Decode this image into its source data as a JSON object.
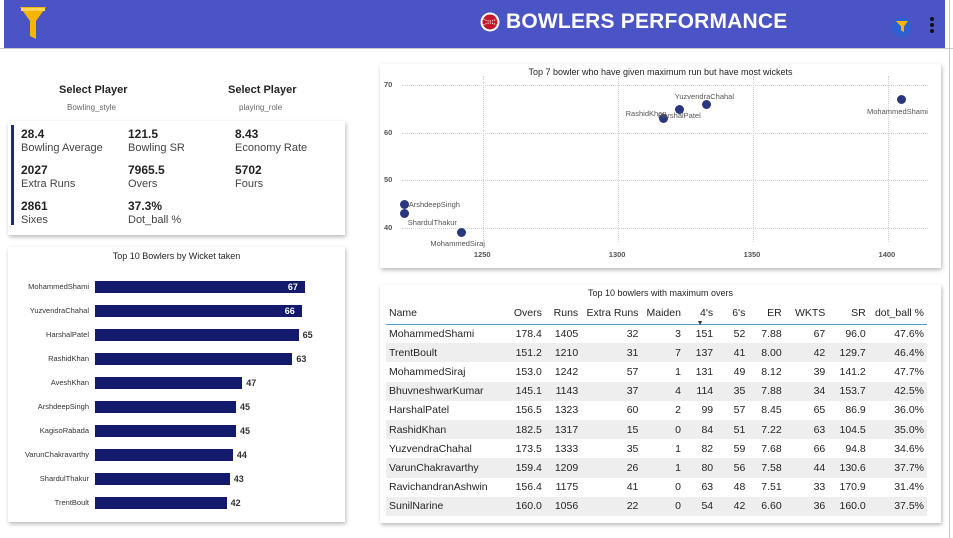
{
  "header": {
    "title": "BOWLERS PERFORMANCE",
    "brand_color": "#4a54c4",
    "logo_icon": "funnel-icon",
    "title_icon": "cricket-ball-icon",
    "buttons": [
      "filter-pane-icon",
      "more-options-icon"
    ]
  },
  "slicers": [
    {
      "title": "Select Player",
      "field": "Bowling_style"
    },
    {
      "title": "Select Player",
      "field": "playing_role"
    }
  ],
  "kpis": [
    {
      "value": "28.4",
      "label": "Bowling Average"
    },
    {
      "value": "121.5",
      "label": "Bowling SR"
    },
    {
      "value": "8.43",
      "label": "Economy Rate"
    },
    {
      "value": "2027",
      "label": "Extra Runs"
    },
    {
      "value": "7965.5",
      "label": "Overs"
    },
    {
      "value": "5702",
      "label": "Fours"
    },
    {
      "value": "2861",
      "label": "Sixes"
    },
    {
      "value": "37.3%",
      "label": "Dot_ball %"
    }
  ],
  "chart_data": [
    {
      "type": "bar",
      "orientation": "horizontal",
      "title": "Top 10 Bowlers by Wicket taken",
      "bar_color": "#13196b",
      "categories": [
        "MohammedShami",
        "YuzvendraChahal",
        "HarshalPatel",
        "RashidKhan",
        "AveshKhan",
        "ArshdeepSingh",
        "KagisoRabada",
        "VarunChakravarthy",
        "ShardulThakur",
        "TrentBoult"
      ],
      "values": [
        67,
        66,
        65,
        63,
        47,
        45,
        45,
        44,
        43,
        42
      ],
      "xlim": [
        0,
        75
      ],
      "data_labels": true
    },
    {
      "type": "scatter",
      "title": "Top 7 bowler who have given maximum run but have most wickets",
      "point_color": "#2b3680",
      "xlim": [
        1220,
        1415
      ],
      "ylim": [
        37,
        72
      ],
      "x_ticks": [
        1250,
        1300,
        1350,
        1400
      ],
      "y_ticks": [
        40,
        50,
        60,
        70
      ],
      "grid": true,
      "points": [
        {
          "label": "MohammedShami",
          "x": 1405,
          "y": 67
        },
        {
          "label": "YuzvendraChahal",
          "x": 1333,
          "y": 66
        },
        {
          "label": "RashidKhan",
          "x": 1317,
          "y": 63
        },
        {
          "label": "HarshalPatel",
          "x": 1323,
          "y": 65
        },
        {
          "label": "ArshdeepSingh",
          "x": 1221,
          "y": 45
        },
        {
          "label": "ShardulThakur",
          "x": 1221,
          "y": 43
        },
        {
          "label": "MohammedSiraj",
          "x": 1242,
          "y": 39
        }
      ]
    },
    {
      "type": "table",
      "title": "Top 10 bowlers with maximum overs",
      "columns": [
        "Name",
        "Overs",
        "Runs",
        "Extra Runs",
        "Maiden",
        "4's",
        "6's",
        "ER",
        "WKTS",
        "SR",
        "dot_ball %"
      ],
      "sorted_column": "4's",
      "rows": [
        [
          "MohammedShami",
          "178.4",
          "1405",
          "32",
          "3",
          "151",
          "52",
          "7.88",
          "67",
          "96.0",
          "47.6%"
        ],
        [
          "TrentBoult",
          "151.2",
          "1210",
          "31",
          "7",
          "137",
          "41",
          "8.00",
          "42",
          "129.7",
          "46.4%"
        ],
        [
          "MohammedSiraj",
          "153.0",
          "1242",
          "57",
          "1",
          "131",
          "49",
          "8.12",
          "39",
          "141.2",
          "47.7%"
        ],
        [
          "BhuvneshwarKumar",
          "145.1",
          "1143",
          "37",
          "4",
          "114",
          "35",
          "7.88",
          "34",
          "153.7",
          "42.5%"
        ],
        [
          "HarshalPatel",
          "156.5",
          "1323",
          "60",
          "2",
          "99",
          "57",
          "8.45",
          "65",
          "86.9",
          "36.0%"
        ],
        [
          "RashidKhan",
          "182.5",
          "1317",
          "15",
          "0",
          "84",
          "51",
          "7.22",
          "63",
          "104.5",
          "35.0%"
        ],
        [
          "YuzvendraChahal",
          "173.5",
          "1333",
          "35",
          "1",
          "82",
          "59",
          "7.68",
          "66",
          "94.8",
          "34.6%"
        ],
        [
          "VarunChakravarthy",
          "159.4",
          "1209",
          "26",
          "1",
          "80",
          "56",
          "7.58",
          "44",
          "130.6",
          "37.7%"
        ],
        [
          "RavichandranAshwin",
          "156.4",
          "1175",
          "41",
          "0",
          "63",
          "48",
          "7.51",
          "33",
          "170.9",
          "31.4%"
        ],
        [
          "SunilNarine",
          "160.0",
          "1056",
          "22",
          "0",
          "54",
          "42",
          "6.60",
          "36",
          "160.0",
          "37.5%"
        ]
      ]
    }
  ]
}
